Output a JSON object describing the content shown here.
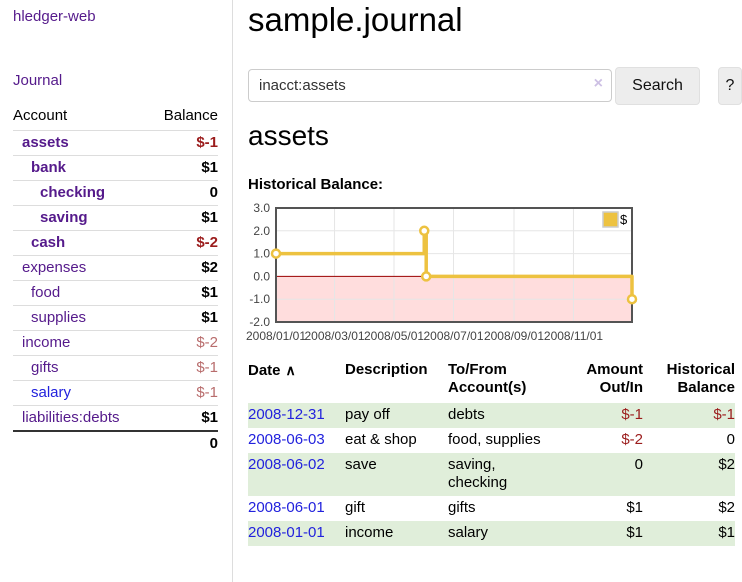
{
  "app": {
    "title": "hledger-web",
    "nav": "Journal"
  },
  "sidebar": {
    "columns": {
      "account": "Account",
      "balance": "Balance"
    },
    "accounts": [
      {
        "name": "assets",
        "depth": 0,
        "bold": true,
        "balance": "$-1"
      },
      {
        "name": "bank",
        "depth": 1,
        "bold": true,
        "balance": "$1"
      },
      {
        "name": "checking",
        "depth": 2,
        "bold": true,
        "balance": "0"
      },
      {
        "name": "saving",
        "depth": 2,
        "bold": true,
        "balance": "$1"
      },
      {
        "name": "cash",
        "depth": 1,
        "bold": true,
        "balance": "$-2"
      },
      {
        "name": "expenses",
        "depth": 0,
        "bold": false,
        "balance": "$2"
      },
      {
        "name": "food",
        "depth": 1,
        "bold": false,
        "balance": "$1"
      },
      {
        "name": "supplies",
        "depth": 1,
        "bold": false,
        "balance": "$1"
      },
      {
        "name": "income",
        "depth": 0,
        "bold": false,
        "balance": "$-2"
      },
      {
        "name": "gifts",
        "depth": 1,
        "bold": false,
        "balance": "$-1"
      },
      {
        "name": "salary",
        "depth": 1,
        "bold": false,
        "balance": "$-1",
        "blue": true
      },
      {
        "name": "liabilities:debts",
        "depth": 0,
        "bold": false,
        "balance": "$1"
      }
    ],
    "total": "0"
  },
  "main": {
    "title": "sample.journal",
    "search": {
      "value": "inacct:assets",
      "clear_icon": "×",
      "search_button": "Search",
      "help_button": "?"
    },
    "account_heading": "assets",
    "chart_heading": "Historical Balance:"
  },
  "chart_data": {
    "type": "line",
    "step": true,
    "title": "Historical Balance of assets",
    "series": [
      {
        "name": "$",
        "color": "#edc240",
        "points": [
          [
            "2008-01-01",
            1.0
          ],
          [
            "2008-06-01",
            2.0
          ],
          [
            "2008-06-03",
            0.0
          ],
          [
            "2008-12-31",
            -1.0
          ]
        ]
      }
    ],
    "x_range": [
      "2008-01-01",
      "2008-12-31"
    ],
    "x_ticks": [
      "2008/01/01",
      "2008/03/01",
      "2008/05/01",
      "2008/07/01",
      "2008/09/01",
      "2008/11/01"
    ],
    "y_ticks": [
      3.0,
      2.0,
      1.0,
      0.0,
      -1.0,
      -2.0
    ],
    "ylim": [
      -2.0,
      3.0
    ],
    "grid": true,
    "legend_position": "top-right",
    "negative_region_color": "#ffdddd",
    "zero_line_color": "#990000",
    "grid_color": "#e6e6e6",
    "border_color": "#545454"
  },
  "register": {
    "sort_icon": "∧",
    "headers": [
      {
        "label": "Date",
        "align": "left"
      },
      {
        "label": "Description",
        "align": "left"
      },
      {
        "label": "To/From\nAccount(s)",
        "align": "left"
      },
      {
        "label": "Amount\nOut/In",
        "align": "right"
      },
      {
        "label": "Historical\nBalance",
        "align": "right"
      }
    ],
    "rows": [
      {
        "date": "2008-12-31",
        "description": "pay off",
        "tofrom": "debts",
        "amount": "$-1",
        "balance": "$-1"
      },
      {
        "date": "2008-06-03",
        "description": "eat & shop",
        "tofrom": "food, supplies",
        "amount": "$-2",
        "balance": "0"
      },
      {
        "date": "2008-06-02",
        "description": "save",
        "tofrom": "saving,\nchecking",
        "amount": "0",
        "balance": "$2"
      },
      {
        "date": "2008-06-01",
        "description": "gift",
        "tofrom": "gifts",
        "amount": "$1",
        "balance": "$2"
      },
      {
        "date": "2008-01-01",
        "description": "income",
        "tofrom": "salary",
        "amount": "$1",
        "balance": "$1"
      }
    ]
  }
}
